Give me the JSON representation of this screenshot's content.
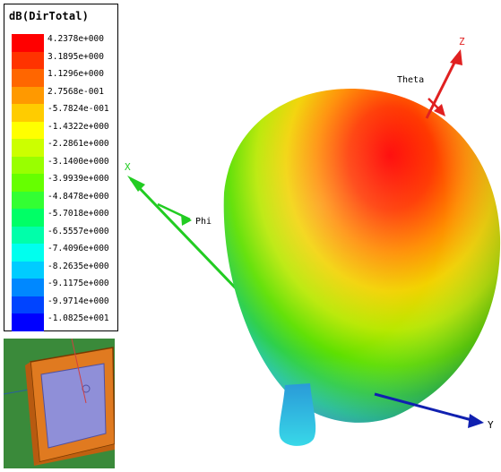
{
  "legend": {
    "title": "dB(DirTotal)",
    "levels": [
      {
        "label": "4.2378e+000",
        "color": "#ff0000"
      },
      {
        "label": "3.1895e+000",
        "color": "#ff3300"
      },
      {
        "label": "1.1296e+000",
        "color": "#ff6600"
      },
      {
        "label": "2.7568e-001",
        "color": "#ff9900"
      },
      {
        "label": "-5.7824e-001",
        "color": "#ffcc00"
      },
      {
        "label": "-1.4322e+000",
        "color": "#ffff00"
      },
      {
        "label": "-2.2861e+000",
        "color": "#ccff00"
      },
      {
        "label": "-3.1400e+000",
        "color": "#99ff00"
      },
      {
        "label": "-3.9939e+000",
        "color": "#66ff00"
      },
      {
        "label": "-4.8478e+000",
        "color": "#33ff33"
      },
      {
        "label": "-5.7018e+000",
        "color": "#00ff66"
      },
      {
        "label": "-6.5557e+000",
        "color": "#00ffaa"
      },
      {
        "label": "-7.4096e+000",
        "color": "#00ffee"
      },
      {
        "label": "-8.2635e+000",
        "color": "#00ccff"
      },
      {
        "label": "-9.1175e+000",
        "color": "#0088ff"
      },
      {
        "label": "-9.9714e+000",
        "color": "#0044ff"
      },
      {
        "label": "-1.0825e+001",
        "color": "#0000ff"
      }
    ]
  },
  "axes": {
    "x": {
      "label": "X",
      "color": "#22cc22"
    },
    "y": {
      "label": "Y",
      "color": "#1020b0"
    },
    "z": {
      "label": "Z",
      "color": "#e02020"
    },
    "theta": "Theta",
    "phi": "Phi"
  },
  "thumbnail": {
    "name": "patch-antenna-model-thumbnail",
    "background": "#3a8a3a",
    "substrate_color": "#e07a20",
    "patch_color": "#8f8fd8"
  }
}
